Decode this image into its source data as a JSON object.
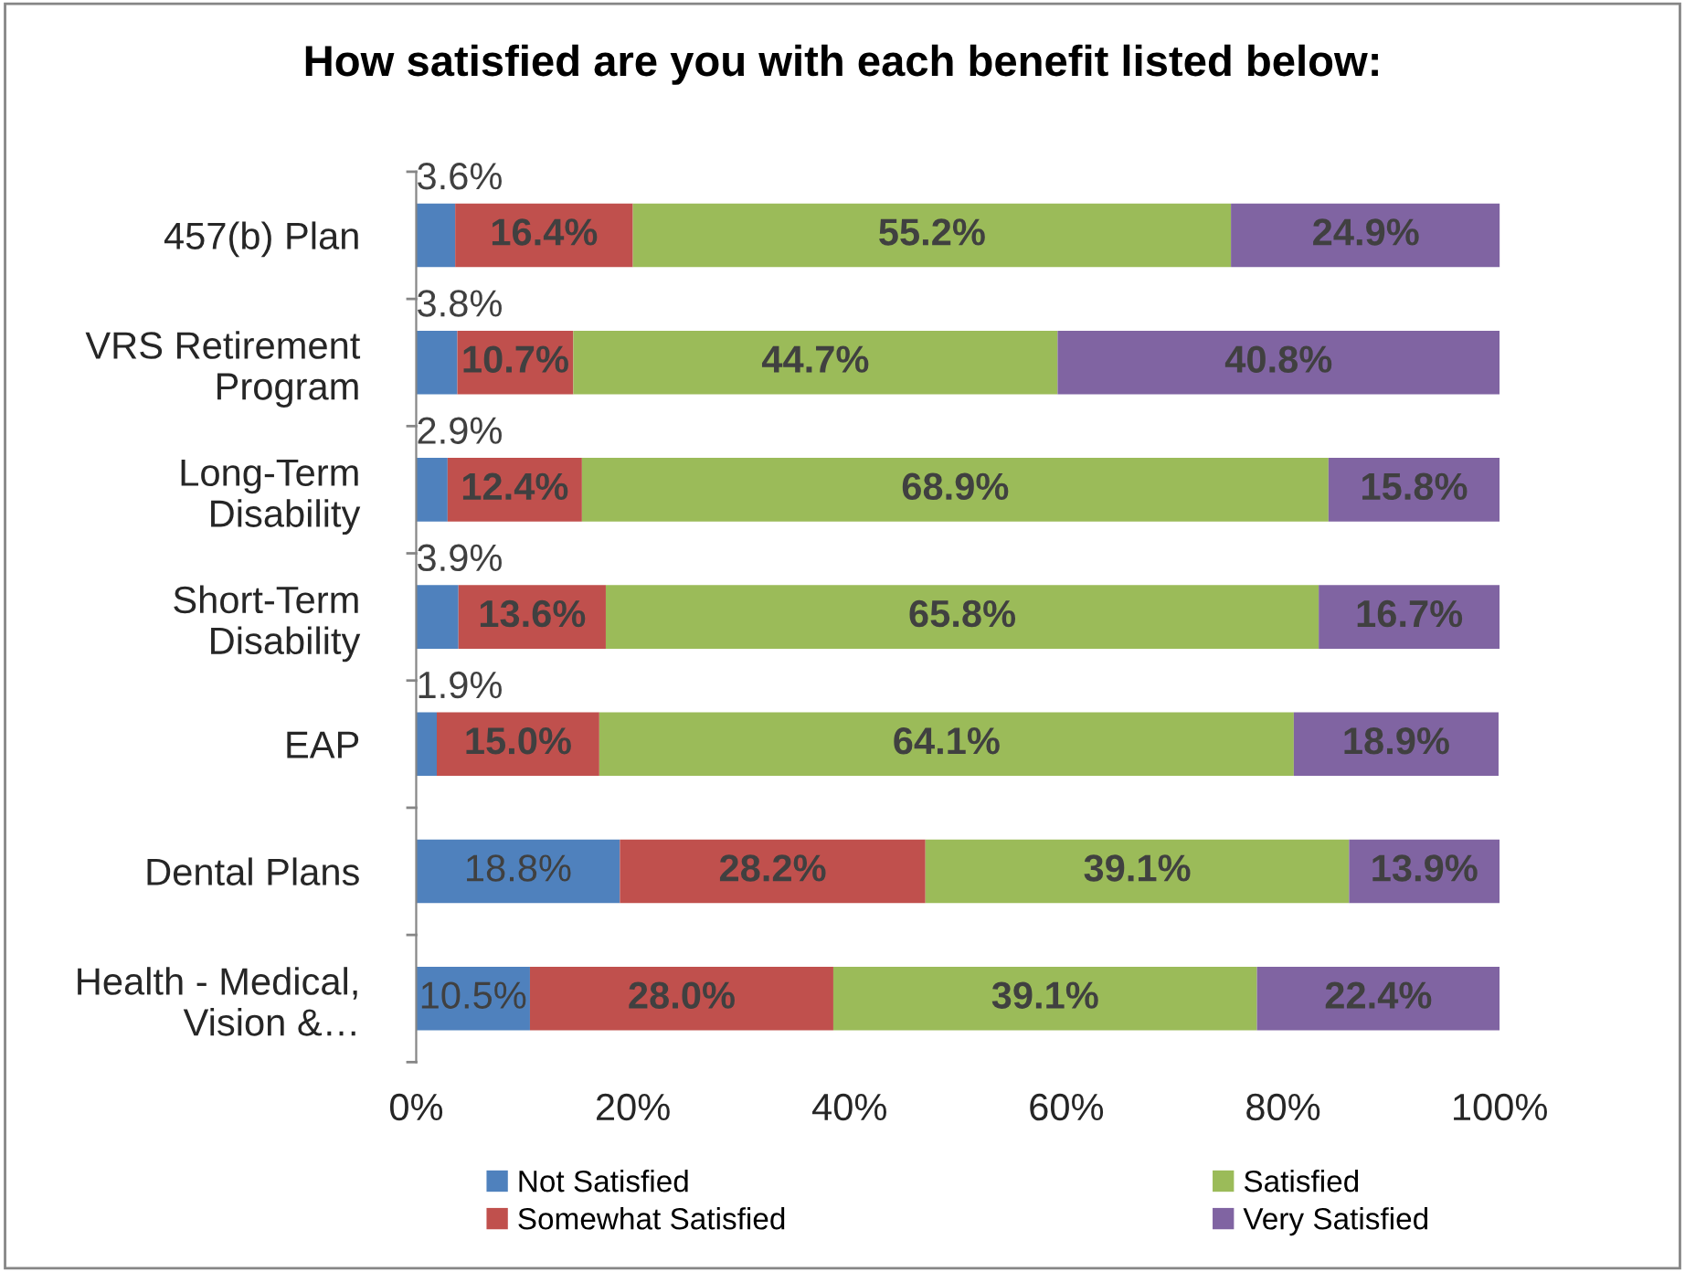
{
  "chart_data": {
    "type": "bar",
    "orientation": "horizontal",
    "stacked": true,
    "title": "How satisfied are you with each benefit listed below:",
    "categories": [
      "457(b) Plan",
      "VRS Retirement\nProgram",
      "Long-Term\nDisability",
      "Short-Term\nDisability",
      "EAP",
      "Dental Plans",
      "Health - Medical,\nVision &…"
    ],
    "series": [
      {
        "name": "Not Satisfied",
        "color": "#4f81bd",
        "values": [
          3.6,
          3.8,
          2.9,
          3.9,
          1.9,
          18.8,
          10.5
        ],
        "value_labels": [
          "3.6%",
          "3.8%",
          "2.9%",
          "3.9%",
          "1.9%",
          "18.8%",
          "10.5%"
        ]
      },
      {
        "name": "Somewhat Satisfied",
        "color": "#c0504d",
        "values": [
          16.4,
          10.7,
          12.4,
          13.6,
          15.0,
          28.2,
          28.0
        ],
        "value_labels": [
          "16.4%",
          "10.7%",
          "12.4%",
          "13.6%",
          "15.0%",
          "28.2%",
          "28.0%"
        ]
      },
      {
        "name": "Satisfied",
        "color": "#9bbb59",
        "values": [
          55.2,
          44.7,
          68.9,
          65.8,
          64.1,
          39.1,
          39.1
        ],
        "value_labels": [
          "55.2%",
          "44.7%",
          "68.9%",
          "65.8%",
          "64.1%",
          "39.1%",
          "39.1%"
        ]
      },
      {
        "name": "Very Satisfied",
        "color": "#8064a2",
        "values": [
          24.9,
          40.8,
          15.8,
          16.7,
          18.9,
          13.9,
          22.4
        ],
        "value_labels": [
          "24.9%",
          "40.8%",
          "15.8%",
          "16.7%",
          "18.9%",
          "13.9%",
          "22.4%"
        ]
      }
    ],
    "xlim": [
      0,
      100
    ],
    "xticks": [
      {
        "value": 0,
        "label": "0%"
      },
      {
        "value": 20,
        "label": "20%"
      },
      {
        "value": 40,
        "label": "40%"
      },
      {
        "value": 60,
        "label": "60%"
      },
      {
        "value": 80,
        "label": "80%"
      },
      {
        "value": 100,
        "label": "100%"
      }
    ],
    "grid": false,
    "legend": "bottom"
  }
}
